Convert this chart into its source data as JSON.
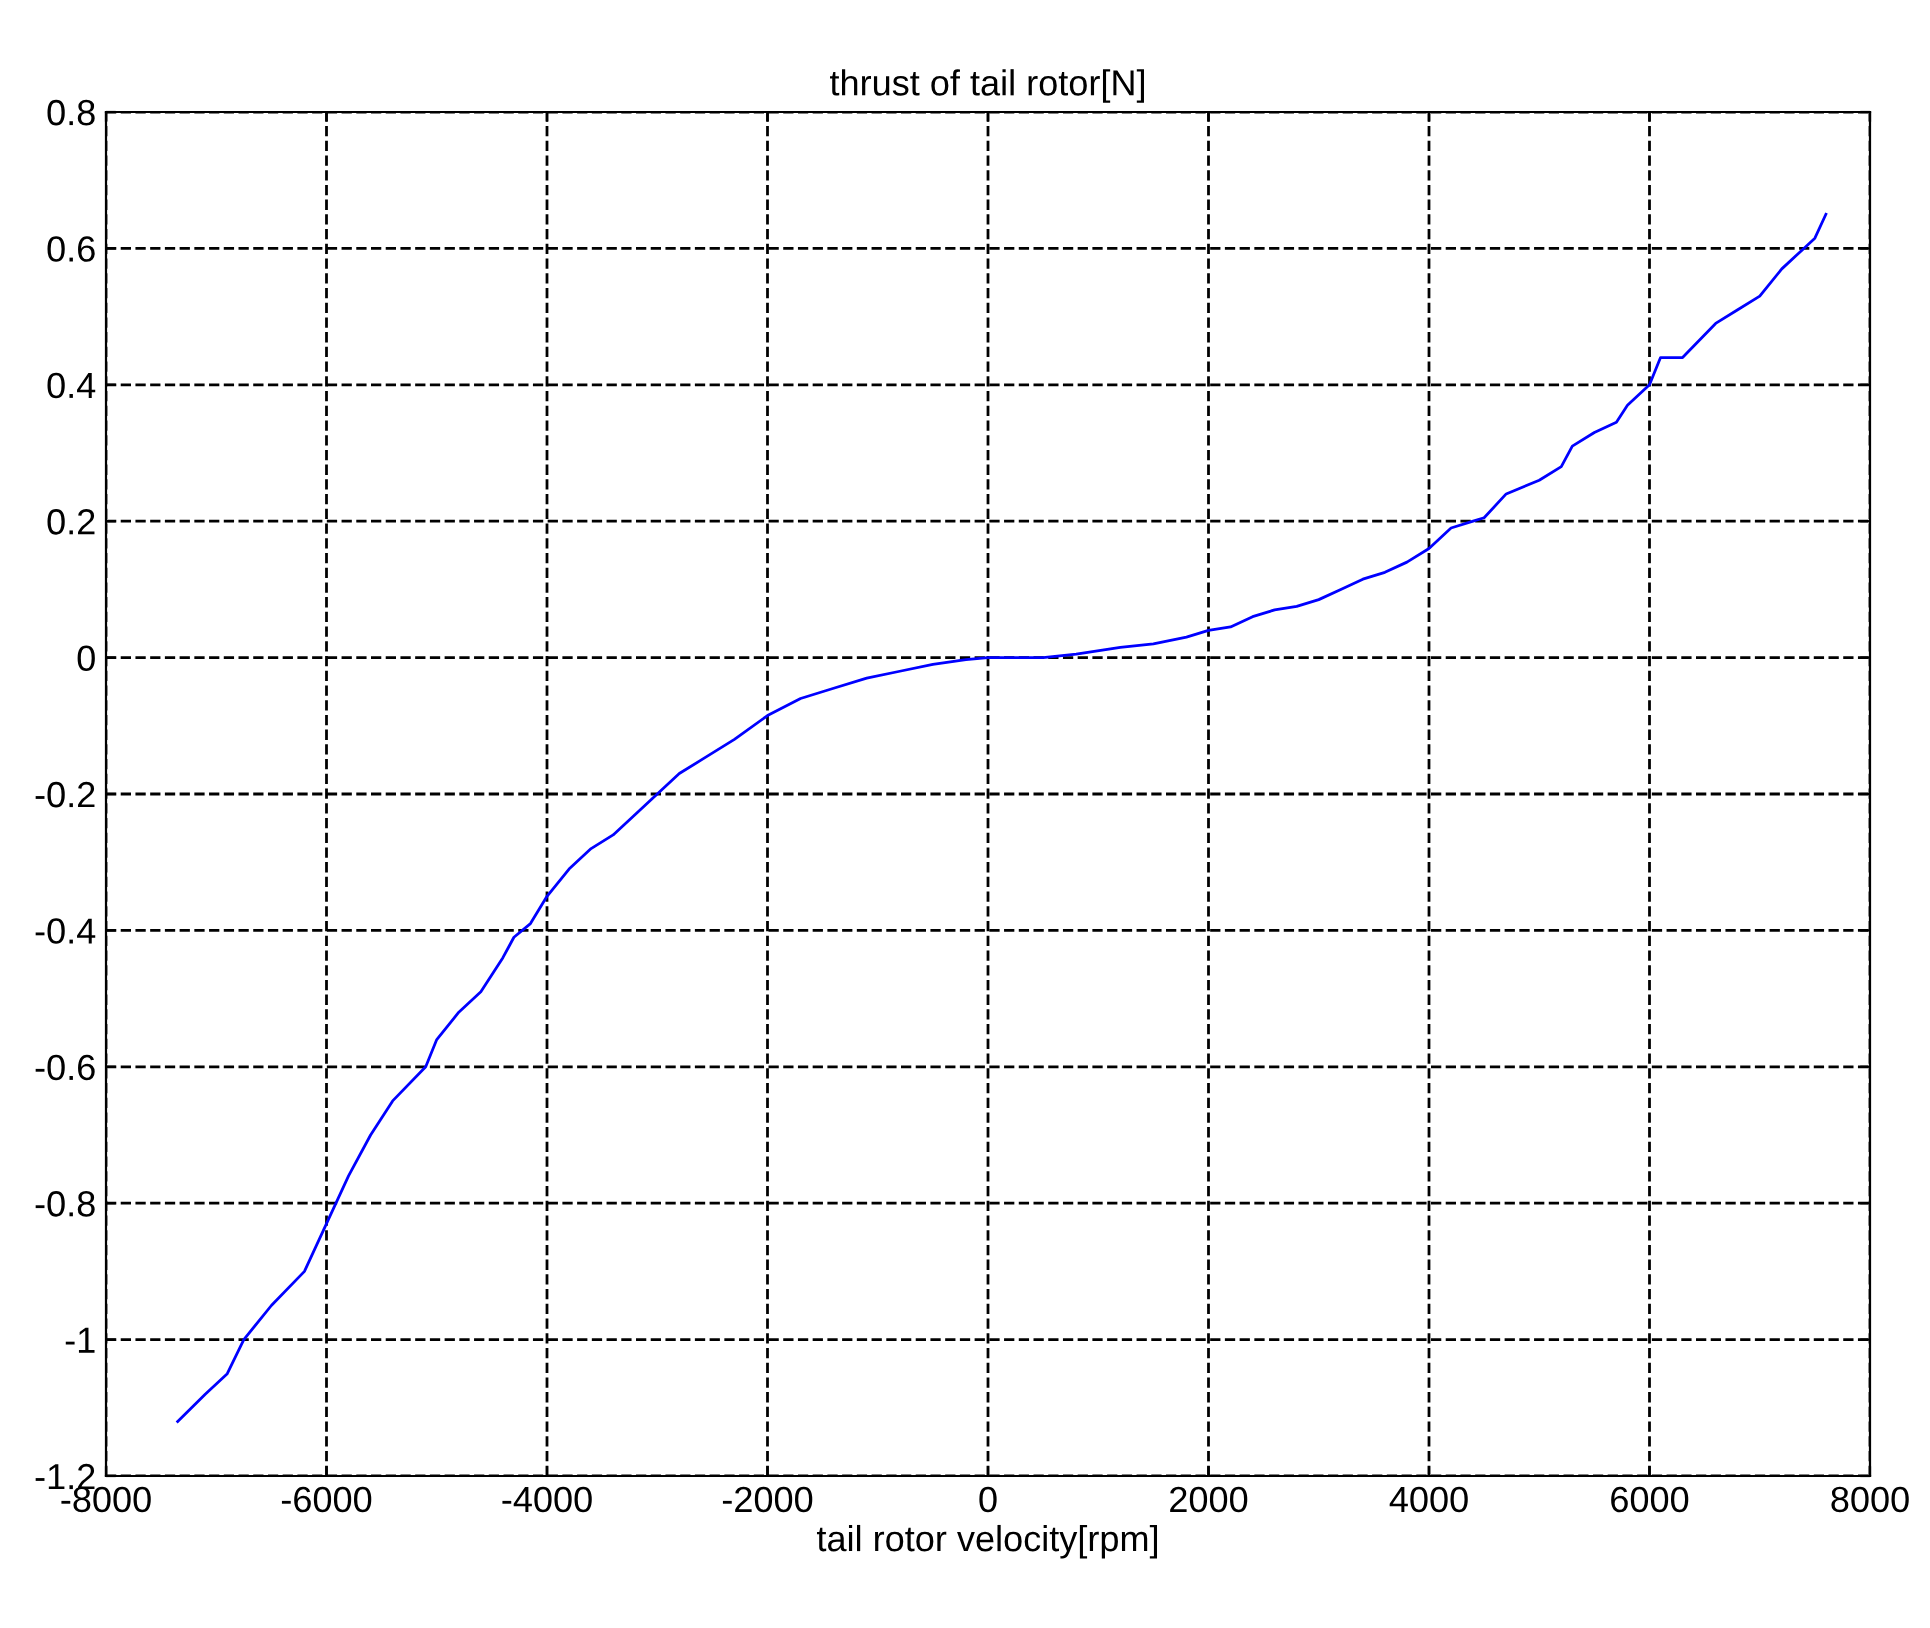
{
  "chart_data": {
    "type": "line",
    "title": "thrust of tail rotor[N]",
    "xlabel": "tail rotor velocity[rpm]",
    "x": [
      -7350,
      -7100,
      -6900,
      -6750,
      -6500,
      -6200,
      -6000,
      -5800,
      -5600,
      -5400,
      -5100,
      -5000,
      -4800,
      -4600,
      -4400,
      -4300,
      -4150,
      -4000,
      -3800,
      -3600,
      -3400,
      -3200,
      -3000,
      -2800,
      -2600,
      -2300,
      -2000,
      -1700,
      -1400,
      -1100,
      -800,
      -500,
      -200,
      0,
      500,
      800,
      1200,
      1500,
      1800,
      2000,
      2200,
      2400,
      2600,
      2800,
      3000,
      3200,
      3400,
      3600,
      3800,
      4000,
      4200,
      4400,
      4500,
      4700,
      5000,
      5200,
      5300,
      5500,
      5700,
      5800,
      6000,
      6100,
      6300,
      6600,
      6800,
      7000,
      7200,
      7400,
      7500,
      7600
    ],
    "series": [
      {
        "color": "#0000ff",
        "values": [
          -1.12,
          -1.08,
          -1.05,
          -1.0,
          -0.95,
          -0.9,
          -0.83,
          -0.76,
          -0.7,
          -0.65,
          -0.6,
          -0.56,
          -0.52,
          -0.49,
          -0.44,
          -0.41,
          -0.39,
          -0.35,
          -0.31,
          -0.28,
          -0.26,
          -0.23,
          -0.2,
          -0.17,
          -0.15,
          -0.12,
          -0.085,
          -0.06,
          -0.045,
          -0.03,
          -0.02,
          -0.01,
          -0.003,
          0,
          0,
          0.005,
          0.015,
          0.02,
          0.03,
          0.04,
          0.045,
          0.06,
          0.07,
          0.075,
          0.085,
          0.1,
          0.115,
          0.125,
          0.14,
          0.16,
          0.19,
          0.2,
          0.205,
          0.24,
          0.26,
          0.28,
          0.31,
          0.33,
          0.345,
          0.37,
          0.4,
          0.44,
          0.44,
          0.49,
          0.51,
          0.53,
          0.57,
          0.6,
          0.615,
          0.65
        ]
      }
    ],
    "xlim": [
      -8000,
      8000
    ],
    "xticks": [
      -8000,
      -6000,
      -4000,
      -2000,
      0,
      2000,
      4000,
      6000,
      8000
    ],
    "ylim": [
      -1.2,
      0.8
    ],
    "yticks": [
      -1.2,
      -1,
      -0.8,
      -0.6,
      -0.4,
      -0.2,
      0,
      0.2,
      0.4,
      0.6,
      0.8
    ],
    "grid": true,
    "line_style": "solid"
  }
}
